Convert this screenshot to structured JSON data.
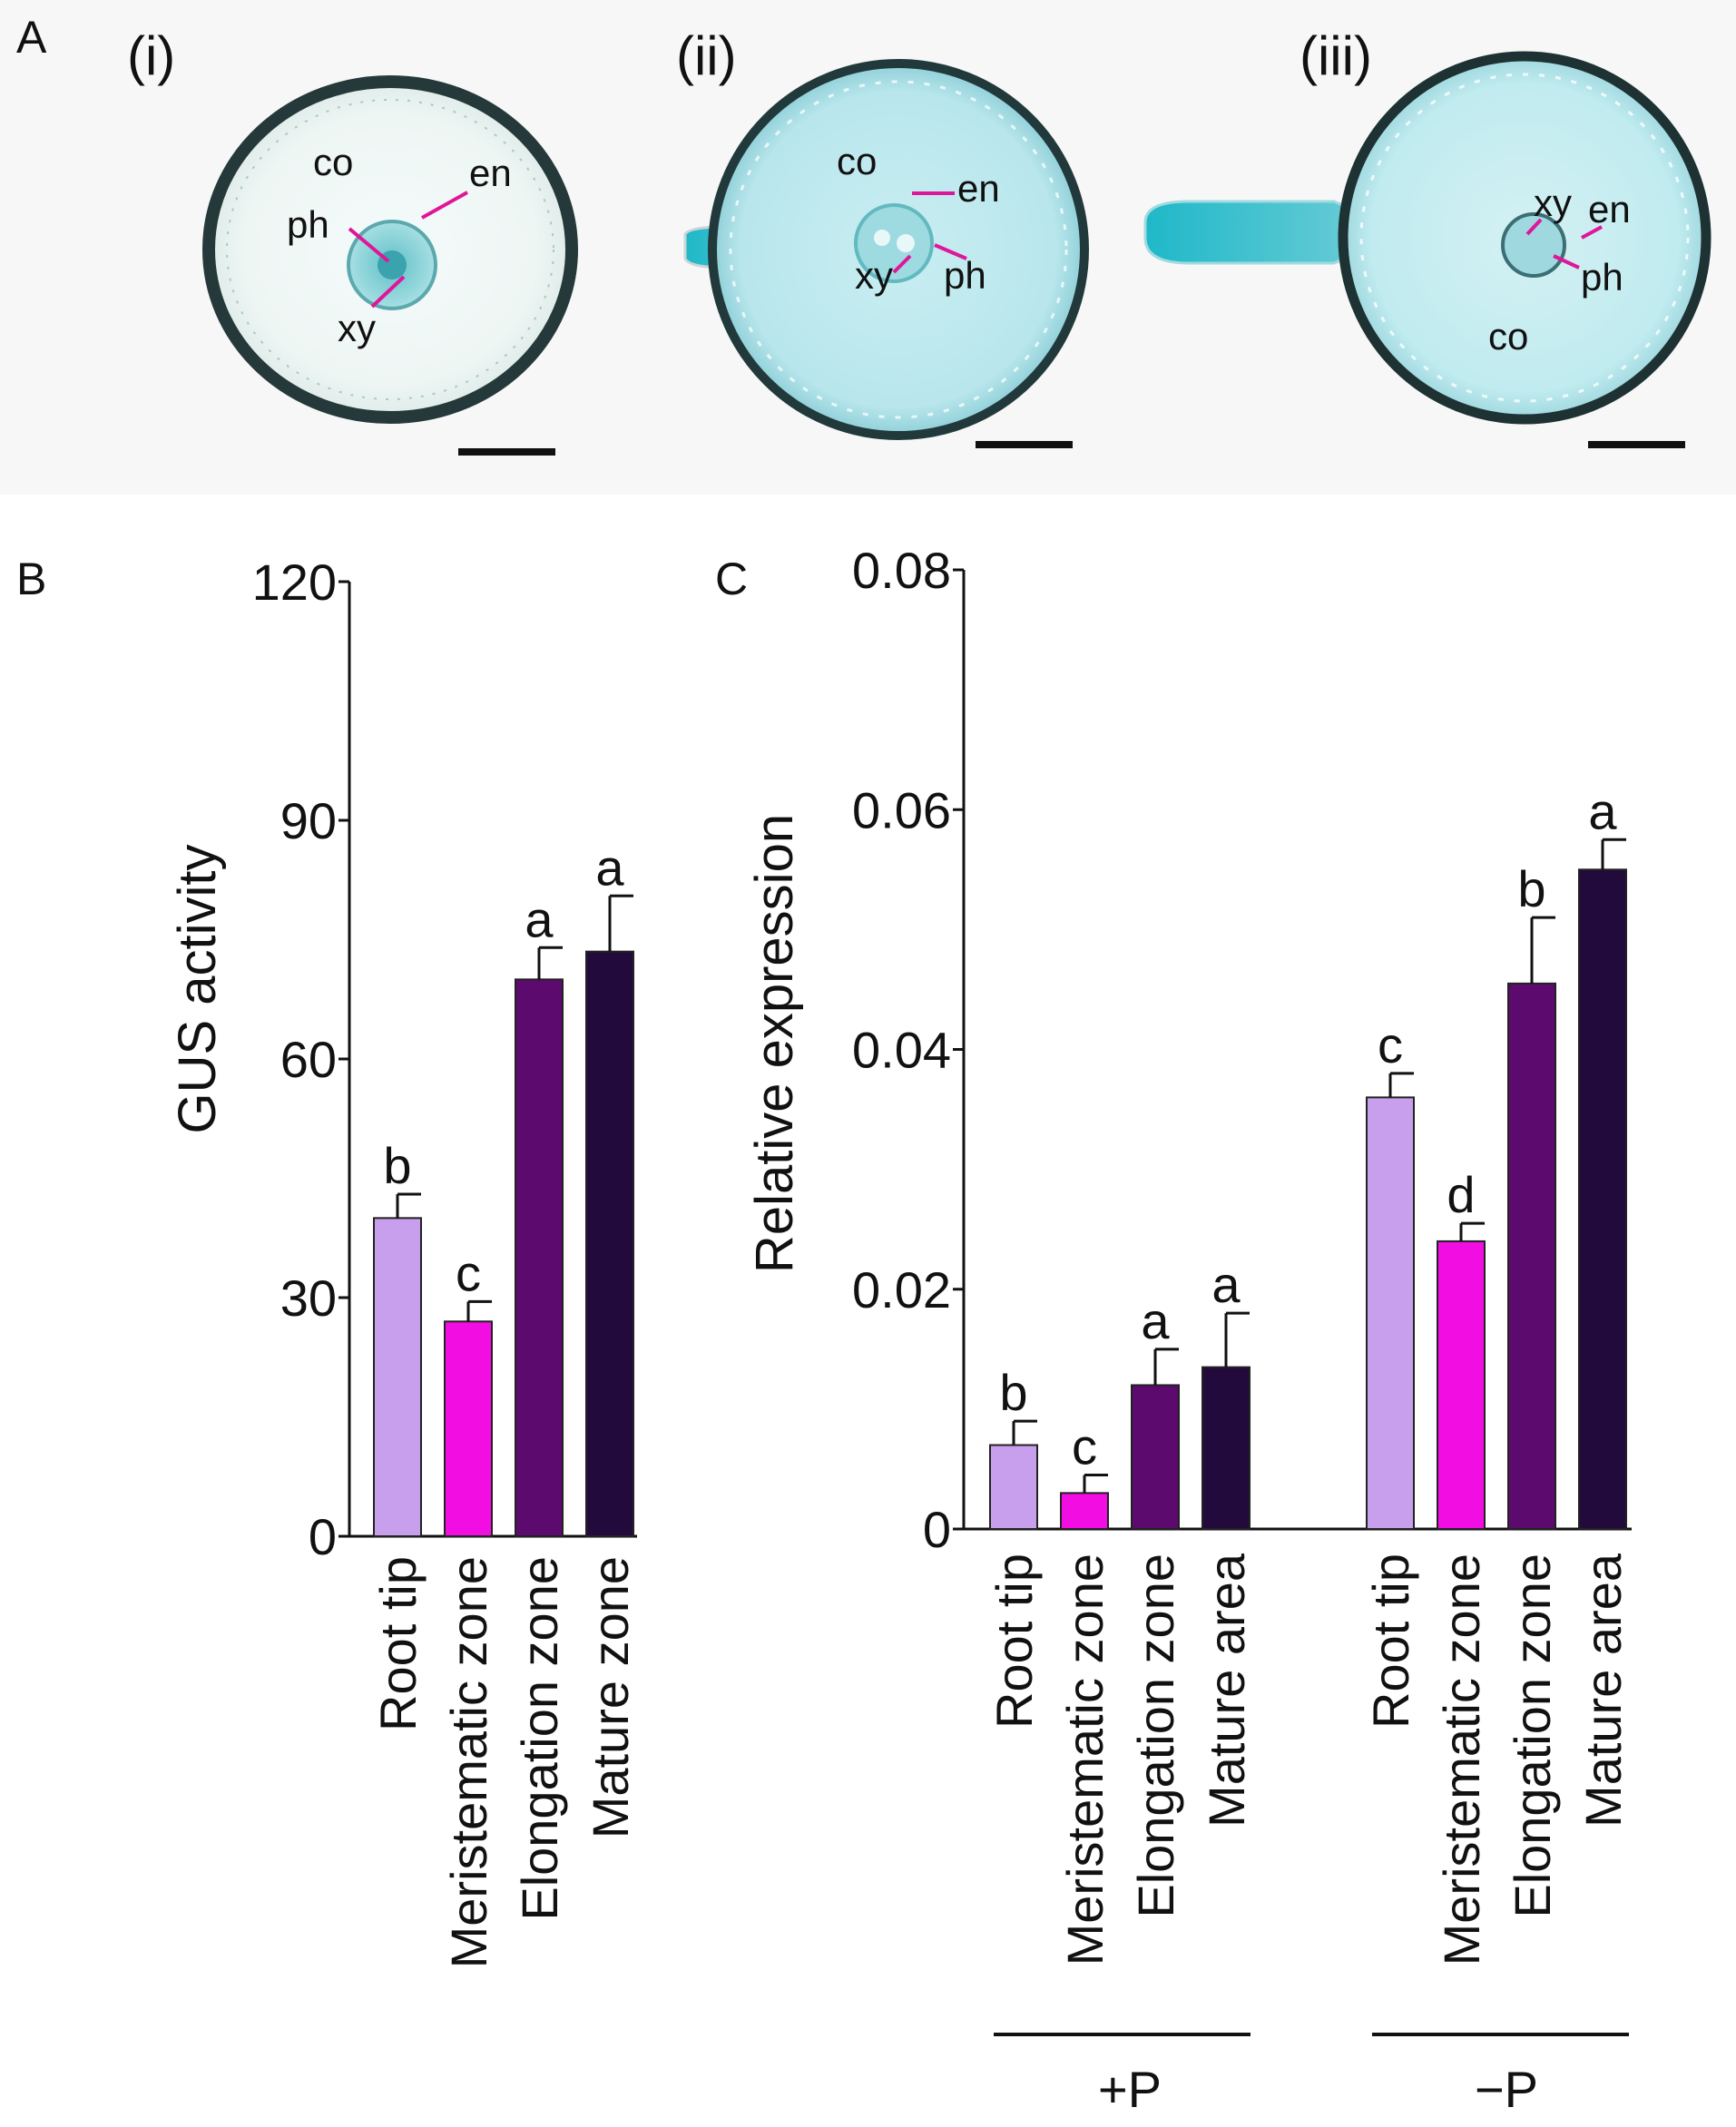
{
  "panels": {
    "a": {
      "letter": "A",
      "sections": [
        {
          "label": "(i)",
          "tissues": {
            "co": "co",
            "en": "en",
            "ph": "ph",
            "xy": "xy"
          }
        },
        {
          "label": "(ii)",
          "tissues": {
            "co": "co",
            "en": "en",
            "ph": "ph",
            "xy": "xy"
          }
        },
        {
          "label": "(iii)",
          "tissues": {
            "co": "co",
            "en": "en",
            "ph": "ph",
            "xy": "xy"
          }
        }
      ]
    },
    "b": {
      "letter": "B"
    },
    "c": {
      "letter": "C"
    }
  },
  "colors": {
    "root_tip": "#c79fec",
    "meristematic": "#f20ee3",
    "elongation": "#5c0a6e",
    "mature": "#220a3d",
    "stain_dark": "#1f3d40",
    "stain_teal": "#7fd3d8",
    "stain_blue": "#29b6c6",
    "pointer": "#e0169a"
  },
  "chart_data": [
    {
      "type": "bar",
      "panel": "B",
      "ylabel": "GUS activity",
      "xlabel": "",
      "ylim": [
        0,
        120
      ],
      "yticks": [
        0,
        30,
        60,
        90,
        120
      ],
      "yticklabels": [
        "0",
        "30",
        "60",
        "90",
        "120"
      ],
      "categories": [
        "Root tip",
        "Meristematic zone",
        "Elongation zone",
        "Mature zone"
      ],
      "values": [
        40,
        27,
        70,
        73.5
      ],
      "errors": [
        3,
        2.5,
        4,
        7
      ],
      "significance": [
        "b",
        "c",
        "a",
        "a"
      ]
    },
    {
      "type": "bar",
      "panel": "C",
      "ylabel": "Relative expression",
      "xlabel": "",
      "ylim": [
        0,
        0.08
      ],
      "yticks": [
        0,
        0.02,
        0.04,
        0.06,
        0.08
      ],
      "yticklabels": [
        "0",
        "0.02",
        "0.04",
        "0.06",
        "0.08"
      ],
      "groups": [
        "+P",
        "−P"
      ],
      "categories": [
        "Root tip",
        "Meristematic zone",
        "Elongation zone",
        "Mature area"
      ],
      "series": [
        {
          "name": "+P",
          "values": [
            0.007,
            0.003,
            0.012,
            0.0135
          ],
          "errors": [
            0.002,
            0.0015,
            0.003,
            0.0045
          ],
          "significance": [
            "b",
            "c",
            "a",
            "a"
          ]
        },
        {
          "name": "−P",
          "values": [
            0.036,
            0.024,
            0.0455,
            0.055
          ],
          "errors": [
            0.002,
            0.0015,
            0.0055,
            0.0025
          ],
          "significance": [
            "c",
            "d",
            "b",
            "a"
          ]
        }
      ]
    }
  ]
}
